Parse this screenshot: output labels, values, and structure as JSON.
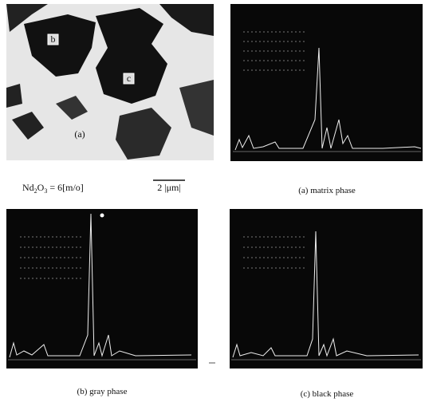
{
  "micrograph": {
    "labels": [
      "b",
      "c",
      "(a)"
    ],
    "composition": [
      "Nd",
      "2",
      "O",
      "3",
      " = 6[m/o]"
    ],
    "scale_bar": "2 |μm|"
  },
  "spectra": {
    "captions": [
      "(a) matrix phase",
      "(b) gray phase",
      "(c) black phase"
    ]
  }
}
